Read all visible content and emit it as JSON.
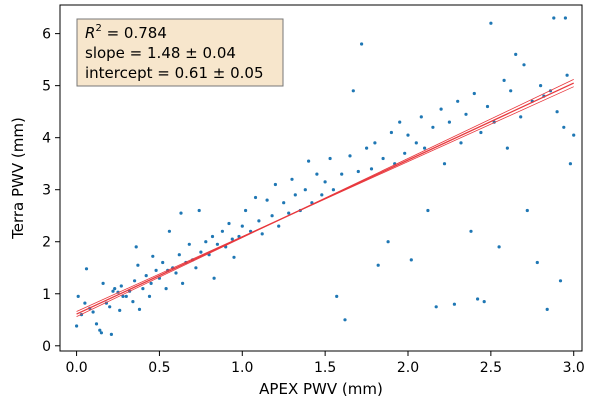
{
  "chart_data": {
    "type": "scatter",
    "xlabel": "APEX PWV (mm)",
    "ylabel": "Terra PWV (mm)",
    "xlim": [
      -0.1,
      3.05
    ],
    "ylim": [
      -0.1,
      6.55
    ],
    "x_ticks": [
      0.0,
      0.5,
      1.0,
      1.5,
      2.0,
      2.5,
      3.0
    ],
    "x_tick_labels": [
      "0.0",
      "0.5",
      "1.0",
      "1.5",
      "2.0",
      "2.5",
      "3.0"
    ],
    "y_ticks": [
      0,
      1,
      2,
      3,
      4,
      5,
      6
    ],
    "y_tick_labels": [
      "0",
      "1",
      "2",
      "3",
      "4",
      "5",
      "6"
    ],
    "grid": false,
    "point_color": "#1f77b4",
    "fit_color": "#e8383d",
    "annotation": {
      "r2_prefix": "R",
      "r2_sup": "2",
      "r2_value": " = 0.784",
      "slope_text": "slope = 1.48 ± 0.04",
      "intercept_text": "intercept = 0.61 ± 0.05",
      "background": "#f7e6cc"
    },
    "fit": {
      "slope": 1.48,
      "slope_err": 0.04,
      "intercept": 0.61,
      "intercept_err": 0.05,
      "x_range": [
        0.0,
        3.0
      ]
    },
    "series": [
      {
        "points": [
          [
            0.0,
            0.38
          ],
          [
            0.01,
            0.95
          ],
          [
            0.03,
            0.6
          ],
          [
            0.05,
            0.82
          ],
          [
            0.06,
            1.48
          ],
          [
            0.08,
            0.72
          ],
          [
            0.1,
            0.65
          ],
          [
            0.12,
            0.42
          ],
          [
            0.14,
            0.3
          ],
          [
            0.15,
            0.25
          ],
          [
            0.16,
            1.2
          ],
          [
            0.18,
            0.82
          ],
          [
            0.2,
            0.75
          ],
          [
            0.21,
            0.22
          ],
          [
            0.22,
            1.05
          ],
          [
            0.23,
            1.1
          ],
          [
            0.25,
            1.03
          ],
          [
            0.26,
            0.68
          ],
          [
            0.27,
            1.15
          ],
          [
            0.28,
            0.95
          ],
          [
            0.3,
            0.95
          ],
          [
            0.32,
            1.05
          ],
          [
            0.34,
            0.85
          ],
          [
            0.35,
            1.25
          ],
          [
            0.36,
            1.9
          ],
          [
            0.37,
            1.55
          ],
          [
            0.38,
            0.7
          ],
          [
            0.4,
            1.1
          ],
          [
            0.42,
            1.35
          ],
          [
            0.44,
            0.95
          ],
          [
            0.45,
            1.2
          ],
          [
            0.46,
            1.72
          ],
          [
            0.48,
            1.45
          ],
          [
            0.5,
            1.3
          ],
          [
            0.52,
            1.6
          ],
          [
            0.54,
            1.1
          ],
          [
            0.55,
            1.45
          ],
          [
            0.56,
            2.2
          ],
          [
            0.58,
            1.5
          ],
          [
            0.6,
            1.4
          ],
          [
            0.62,
            1.75
          ],
          [
            0.63,
            2.55
          ],
          [
            0.64,
            1.2
          ],
          [
            0.66,
            1.6
          ],
          [
            0.68,
            1.95
          ],
          [
            0.7,
            1.65
          ],
          [
            0.72,
            1.5
          ],
          [
            0.74,
            2.6
          ],
          [
            0.75,
            1.8
          ],
          [
            0.78,
            2.0
          ],
          [
            0.8,
            1.75
          ],
          [
            0.82,
            2.1
          ],
          [
            0.83,
            1.3
          ],
          [
            0.85,
            1.95
          ],
          [
            0.88,
            2.2
          ],
          [
            0.9,
            1.9
          ],
          [
            0.92,
            2.35
          ],
          [
            0.94,
            2.05
          ],
          [
            0.95,
            1.7
          ],
          [
            0.98,
            2.1
          ],
          [
            1.0,
            2.3
          ],
          [
            1.02,
            2.6
          ],
          [
            1.05,
            2.2
          ],
          [
            1.08,
            2.85
          ],
          [
            1.1,
            2.4
          ],
          [
            1.12,
            2.15
          ],
          [
            1.15,
            2.8
          ],
          [
            1.18,
            2.5
          ],
          [
            1.2,
            3.1
          ],
          [
            1.22,
            2.3
          ],
          [
            1.25,
            2.75
          ],
          [
            1.28,
            2.55
          ],
          [
            1.3,
            3.2
          ],
          [
            1.32,
            2.9
          ],
          [
            1.35,
            2.6
          ],
          [
            1.38,
            3.0
          ],
          [
            1.4,
            3.55
          ],
          [
            1.42,
            2.75
          ],
          [
            1.45,
            3.3
          ],
          [
            1.48,
            2.9
          ],
          [
            1.5,
            3.15
          ],
          [
            1.53,
            3.6
          ],
          [
            1.55,
            3.0
          ],
          [
            1.57,
            0.95
          ],
          [
            1.6,
            3.3
          ],
          [
            1.62,
            0.5
          ],
          [
            1.65,
            3.65
          ],
          [
            1.67,
            4.9
          ],
          [
            1.7,
            3.35
          ],
          [
            1.72,
            5.8
          ],
          [
            1.75,
            3.8
          ],
          [
            1.78,
            3.4
          ],
          [
            1.8,
            3.9
          ],
          [
            1.82,
            1.55
          ],
          [
            1.85,
            3.6
          ],
          [
            1.88,
            2.0
          ],
          [
            1.9,
            4.1
          ],
          [
            1.92,
            3.5
          ],
          [
            1.95,
            4.3
          ],
          [
            1.98,
            3.7
          ],
          [
            2.0,
            4.05
          ],
          [
            2.02,
            1.65
          ],
          [
            2.05,
            3.9
          ],
          [
            2.08,
            4.4
          ],
          [
            2.1,
            3.8
          ],
          [
            2.12,
            2.6
          ],
          [
            2.15,
            4.2
          ],
          [
            2.17,
            0.75
          ],
          [
            2.2,
            4.55
          ],
          [
            2.22,
            3.5
          ],
          [
            2.25,
            4.3
          ],
          [
            2.28,
            0.8
          ],
          [
            2.3,
            4.7
          ],
          [
            2.32,
            3.9
          ],
          [
            2.35,
            4.45
          ],
          [
            2.38,
            2.2
          ],
          [
            2.4,
            4.85
          ],
          [
            2.42,
            0.9
          ],
          [
            2.44,
            4.1
          ],
          [
            2.46,
            0.85
          ],
          [
            2.48,
            4.6
          ],
          [
            2.5,
            6.2
          ],
          [
            2.52,
            4.3
          ],
          [
            2.55,
            1.9
          ],
          [
            2.58,
            5.1
          ],
          [
            2.6,
            3.8
          ],
          [
            2.62,
            4.9
          ],
          [
            2.65,
            5.6
          ],
          [
            2.68,
            4.4
          ],
          [
            2.7,
            5.4
          ],
          [
            2.72,
            2.6
          ],
          [
            2.75,
            4.7
          ],
          [
            2.78,
            1.6
          ],
          [
            2.8,
            5.0
          ],
          [
            2.82,
            4.8
          ],
          [
            2.84,
            0.7
          ],
          [
            2.86,
            4.9
          ],
          [
            2.88,
            6.3
          ],
          [
            2.9,
            4.5
          ],
          [
            2.92,
            1.25
          ],
          [
            2.94,
            4.2
          ],
          [
            2.95,
            6.3
          ],
          [
            2.96,
            5.2
          ],
          [
            2.98,
            3.5
          ],
          [
            3.0,
            4.05
          ]
        ]
      }
    ]
  }
}
